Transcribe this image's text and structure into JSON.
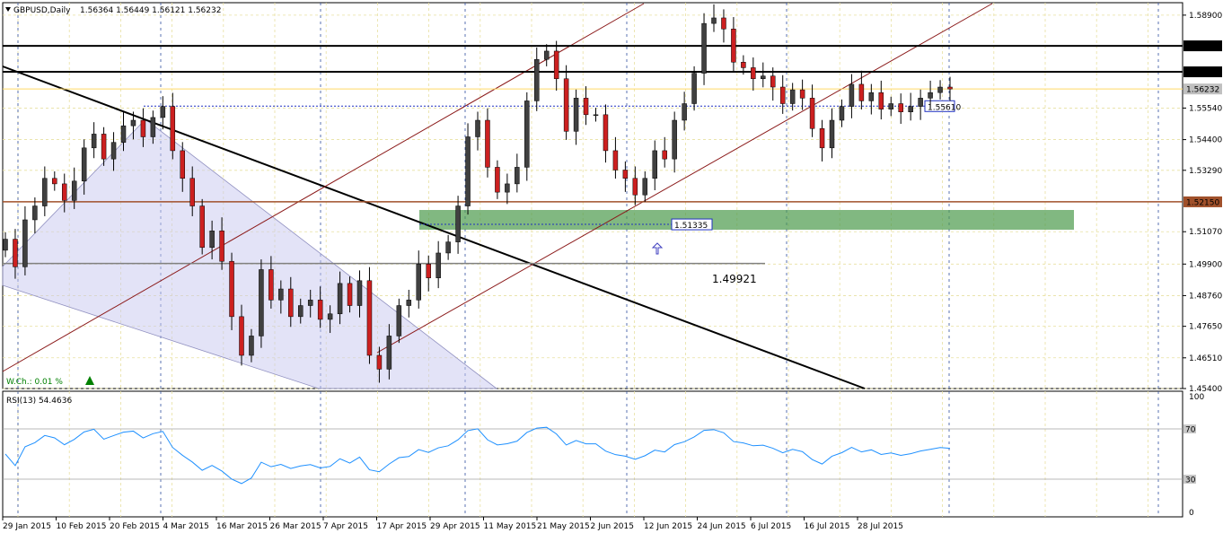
{
  "header": {
    "symbol": "GBPUSD,Daily",
    "ohlc": "1.56364 1.56449 1.56121 1.56232"
  },
  "indicator": {
    "label": "RSI(13) 54.4636",
    "levels": [
      70,
      30
    ],
    "level_labels": [
      "70",
      "30"
    ],
    "scale_max": "100",
    "scale_min": "0"
  },
  "weekly_change": {
    "label": "W.Ch.: 0.01 %"
  },
  "colors": {
    "bull_body": "#404040",
    "bear_body": "#cc2020",
    "rsi_line": "#1e90ff",
    "grid": "#e8e0a0",
    "channel": "#8b1a1a",
    "zone": "#4c9a4c",
    "wedge": "#c8c8f0",
    "price_line": "#ffd966"
  },
  "chart_data": {
    "type": "candlestick",
    "symbol": "GBPUSD",
    "timeframe": "Daily",
    "ylim": [
      1.454,
      1.5935
    ],
    "y_ticks": [
      "1.58900",
      "1.55540",
      "1.54400",
      "1.53290",
      "1.51070",
      "1.49900",
      "1.48760",
      "1.47650",
      "1.46510",
      "1.45400"
    ],
    "date_labels": [
      "29 Jan 2015",
      "10 Feb 2015",
      "20 Feb 2015",
      "4 Mar 2015",
      "16 Mar 2015",
      "26 Mar 2015",
      "7 Apr 2015",
      "17 Apr 2015",
      "29 Apr 2015",
      "11 May 2015",
      "21 May 2015",
      "2 Jun 2015",
      "12 Jun 2015",
      "24 Jun 2015",
      "6 Jul 2015",
      "16 Jul 2015",
      "28 Jul 2015"
    ],
    "horizontal_levels": [
      {
        "value": 1.5779,
        "label": "1.57790",
        "style": "solid-black"
      },
      {
        "value": 1.5685,
        "label": "1.56850",
        "style": "solid-black"
      },
      {
        "value": 1.5623,
        "label": "1.56232",
        "style": "current-price"
      },
      {
        "value": 1.5215,
        "label": "1.52150",
        "style": "solid-brown"
      },
      {
        "value": 1.4992,
        "label": "1.49921",
        "style": "solid-gray"
      },
      {
        "value": 1.5561,
        "label": "1.55610",
        "style": "dotted-blue"
      },
      {
        "value": 1.51335,
        "label": "1.51335",
        "style": "dotted-blue"
      }
    ],
    "close_path": [
      1.508,
      1.498,
      1.515,
      1.52,
      1.53,
      1.528,
      1.522,
      1.529,
      1.541,
      1.546,
      1.537,
      1.543,
      1.549,
      1.551,
      1.545,
      1.552,
      1.556,
      1.54,
      1.53,
      1.52,
      1.505,
      1.511,
      1.5,
      1.48,
      1.466,
      1.473,
      1.497,
      1.486,
      1.49,
      1.48,
      1.484,
      1.486,
      1.479,
      1.481,
      1.492,
      1.484,
      1.493,
      1.466,
      1.461,
      1.473,
      1.484,
      1.486,
      1.499,
      1.494,
      1.503,
      1.507,
      1.52,
      1.545,
      1.551,
      1.534,
      1.525,
      1.528,
      1.534,
      1.558,
      1.573,
      1.576,
      1.566,
      1.547,
      1.559,
      1.553,
      1.553,
      1.54,
      1.533,
      1.53,
      1.524,
      1.53,
      1.54,
      1.537,
      1.551,
      1.557,
      1.568,
      1.586,
      1.588,
      1.584,
      1.572,
      1.57,
      1.566,
      1.567,
      1.563,
      1.557,
      1.562,
      1.559,
      1.548,
      1.541,
      1.551,
      1.556,
      1.564,
      1.558,
      1.561,
      1.555,
      1.557,
      1.554,
      1.556,
      1.559,
      1.561,
      1.563,
      1.5623
    ]
  }
}
